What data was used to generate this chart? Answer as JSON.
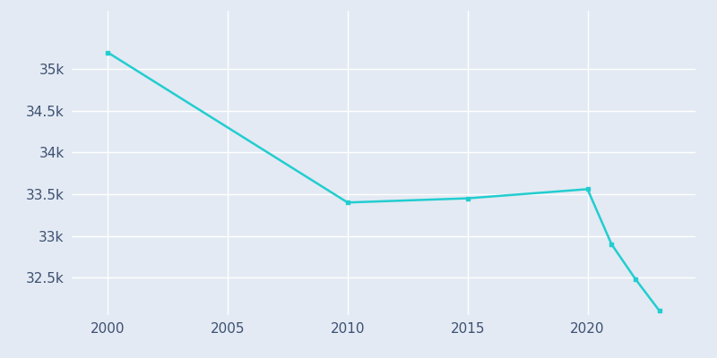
{
  "years": [
    2000,
    2010,
    2015,
    2020,
    2021,
    2022,
    2023
  ],
  "population": [
    35200,
    33400,
    33450,
    33560,
    32900,
    32480,
    32100
  ],
  "line_color": "#22cdd0",
  "marker_color": "#22cdd0",
  "background_color": "#e3eaf3",
  "grid_color": "#ffffff",
  "tick_label_color": "#3d4f72",
  "xlim": [
    1998.5,
    2024.5
  ],
  "ylim": [
    32050,
    35700
  ],
  "xticks": [
    2000,
    2005,
    2010,
    2015,
    2020
  ],
  "yticks": [
    32500,
    33000,
    33500,
    34000,
    34500,
    35000
  ],
  "ytick_labels": [
    "32.5k",
    "33k",
    "33.5k",
    "34k",
    "34.5k",
    "35k"
  ],
  "line_width": 1.8,
  "marker_size": 3.5
}
